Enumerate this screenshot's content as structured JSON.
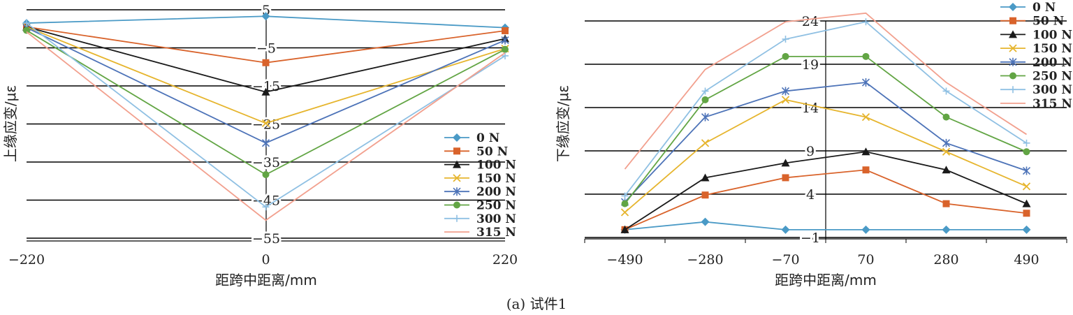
{
  "caption": "(a) 试件1",
  "series_style": [
    {
      "color": "#4a9ac6",
      "marker": "diamond"
    },
    {
      "color": "#d9632b",
      "marker": "square"
    },
    {
      "color": "#1a1a1a",
      "marker": "triangle"
    },
    {
      "color": "#e6b52e",
      "marker": "x"
    },
    {
      "color": "#4d73b8",
      "marker": "asterisk"
    },
    {
      "color": "#62a544",
      "marker": "circle"
    },
    {
      "color": "#8fc0e3",
      "marker": "plus"
    },
    {
      "color": "#f2a08e",
      "marker": "none"
    }
  ],
  "chart_data": [
    {
      "type": "line",
      "xlabel": "距跨中距离/mm",
      "ylabel": "上缘应变/με",
      "x": [
        -220,
        0,
        220
      ],
      "x_tick_labels": [
        "−220",
        "0",
        "220"
      ],
      "y_ticks": [
        5,
        -5,
        -15,
        -25,
        -35,
        -45,
        -55
      ],
      "y_tick_labels": [
        "5",
        "−5",
        "−15",
        "−25",
        "−35",
        "−45",
        "−55"
      ],
      "ylim": [
        -55,
        5
      ],
      "grid": true,
      "legend_position": "right",
      "series": [
        {
          "name": "0 N",
          "values": [
            1.5,
            3.3,
            0.3
          ]
        },
        {
          "name": "50 N",
          "values": [
            0.5,
            -8.9,
            -0.5
          ]
        },
        {
          "name": "100 N",
          "values": [
            0.5,
            -16.6,
            -2.6
          ]
        },
        {
          "name": "150 N",
          "values": [
            0.5,
            -24.8,
            -5.2
          ]
        },
        {
          "name": "200 N",
          "values": [
            0.3,
            -30.0,
            -3.0
          ]
        },
        {
          "name": "250 N",
          "values": [
            -0.4,
            -38.3,
            -5.4
          ]
        },
        {
          "name": "300 N",
          "values": [
            1.5,
            -46.8,
            -7.1
          ]
        },
        {
          "name": "315 N",
          "values": [
            -0.8,
            -50.3,
            -6.3
          ]
        }
      ]
    },
    {
      "type": "line",
      "xlabel": "距跨中距离/mm",
      "ylabel": "下缘应变/με",
      "categories": [
        "−490",
        "−280",
        "−70",
        "70",
        "280",
        "490"
      ],
      "y_ticks": [
        -1,
        4,
        9,
        14,
        19,
        24
      ],
      "y_tick_labels": [
        "−1",
        "4",
        "9",
        "14",
        "19",
        "24"
      ],
      "ylim": [
        -1,
        24
      ],
      "grid": true,
      "legend_position": "top-right",
      "series": [
        {
          "name": "0 N",
          "values": [
            -0.1,
            0.8,
            -0.1,
            -0.1,
            -0.1,
            -0.1
          ]
        },
        {
          "name": "50 N",
          "values": [
            -0.1,
            3.9,
            5.9,
            6.8,
            2.9,
            1.8
          ]
        },
        {
          "name": "100 N",
          "values": [
            -0.1,
            5.9,
            7.6,
            8.9,
            6.8,
            2.9
          ]
        },
        {
          "name": "150 N",
          "values": [
            1.9,
            9.9,
            14.9,
            12.9,
            8.9,
            4.9
          ]
        },
        {
          "name": "200 N",
          "values": [
            3.1,
            12.9,
            15.9,
            16.9,
            9.9,
            6.7
          ]
        },
        {
          "name": "250 N",
          "values": [
            2.9,
            14.9,
            19.9,
            19.9,
            12.9,
            8.9
          ]
        },
        {
          "name": "300 N",
          "values": [
            3.8,
            15.9,
            21.9,
            23.9,
            15.9,
            9.9
          ]
        },
        {
          "name": "315 N",
          "values": [
            6.9,
            18.4,
            23.9,
            24.9,
            16.9,
            10.9
          ]
        }
      ]
    }
  ]
}
